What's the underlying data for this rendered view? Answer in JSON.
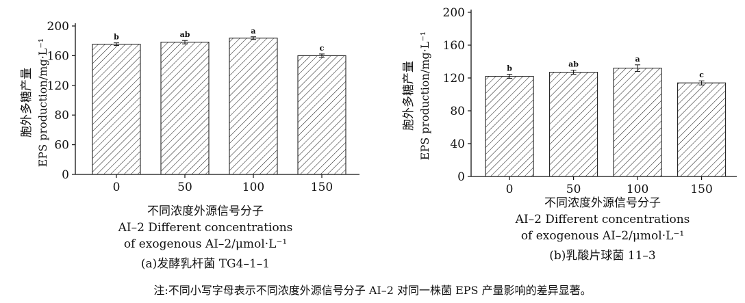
{
  "chart_data": [
    {
      "type": "bar",
      "categories": [
        "0",
        "50",
        "100",
        "150"
      ],
      "values": [
        193,
        196,
        202,
        176
      ],
      "errors": [
        2,
        2.5,
        2,
        2.5
      ],
      "significance": [
        "b",
        "ab",
        "a",
        "c"
      ],
      "ylim": [
        0,
        220
      ],
      "yticks": [
        "0",
        "60",
        "80",
        "120",
        "160",
        "200"
      ],
      "ylabel_cn": "胞外多糖产量",
      "ylabel_en": "EPS production/mg·L⁻¹",
      "xlabel_cn": "不同浓度外源信号分子",
      "xlabel_en_line1": "AI–2 Different concentrations",
      "xlabel_en_line2": "of exogenous AI–2/μmol·L⁻¹",
      "caption": "(a)发酵乳杆菌 TG4–1–1"
    },
    {
      "type": "bar",
      "categories": [
        "0",
        "50",
        "100",
        "150"
      ],
      "values": [
        122,
        127,
        132,
        114
      ],
      "errors": [
        2.5,
        2.5,
        4,
        2.5
      ],
      "significance": [
        "b",
        "ab",
        "a",
        "c"
      ],
      "ylim": [
        0,
        200
      ],
      "yticks": [
        "0",
        "40",
        "80",
        "120",
        "160",
        "200"
      ],
      "ylabel_cn": "胞外多糖产量",
      "ylabel_en": "EPS production/mg·L⁻¹",
      "xlabel_cn": "不同浓度外源信号分子",
      "xlabel_en_line1": "AI–2 Different concentrations",
      "xlabel_en_line2": "of exogenous AI–2/μmol·L⁻¹",
      "caption": "(b)乳酸片球菌 11–3"
    }
  ],
  "note": "注:不同小写字母表示不同浓度外源信号分子 AI–2 对同一株菌 EPS 产量影响的差异显著。"
}
